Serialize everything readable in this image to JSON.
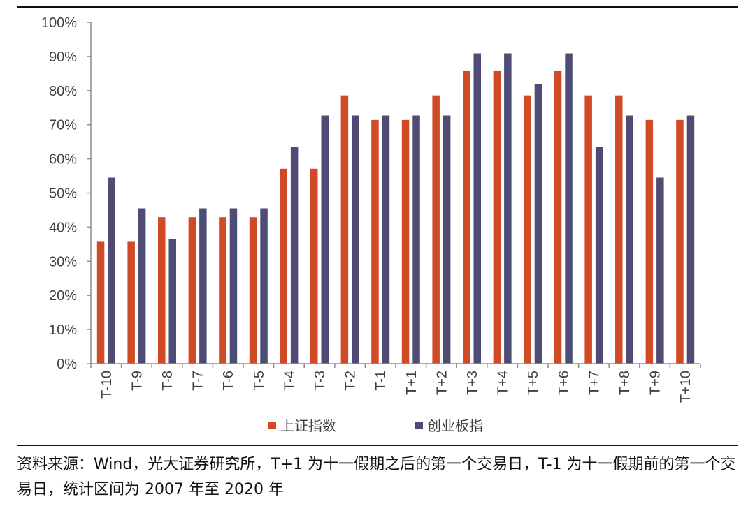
{
  "chart_data": {
    "type": "bar",
    "categories": [
      "T-10",
      "T-9",
      "T-8",
      "T-7",
      "T-6",
      "T-5",
      "T-4",
      "T-3",
      "T-2",
      "T-1",
      "T+1",
      "T+2",
      "T+3",
      "T+4",
      "T+5",
      "T+6",
      "T+7",
      "T+8",
      "T+9",
      "T+10"
    ],
    "series": [
      {
        "name": "上证指数",
        "color": "#D04A26",
        "values": [
          35.7,
          35.7,
          42.9,
          42.9,
          42.9,
          42.9,
          57.1,
          57.1,
          78.6,
          71.4,
          71.4,
          78.6,
          85.7,
          85.7,
          78.6,
          85.7,
          78.6,
          78.6,
          71.4,
          71.4
        ]
      },
      {
        "name": "创业板指",
        "color": "#4E4C74",
        "values": [
          54.5,
          45.5,
          36.4,
          45.5,
          45.5,
          45.5,
          63.6,
          72.7,
          72.7,
          72.7,
          72.7,
          72.7,
          90.9,
          90.9,
          81.8,
          90.9,
          63.6,
          72.7,
          54.5,
          72.7
        ]
      }
    ],
    "ylim": [
      0,
      100
    ],
    "yticks": [
      "0%",
      "10%",
      "20%",
      "30%",
      "40%",
      "50%",
      "60%",
      "70%",
      "80%",
      "90%",
      "100%"
    ],
    "grid": false,
    "legend_position": "bottom-center",
    "title": "",
    "xlabel": "",
    "ylabel": ""
  },
  "source_note": "资料来源：Wind，光大证券研究所，T+1 为十一假期之后的第一个交易日，T-1 为十一假期前的第一个交易日，统计区间为 2007 年至 2020 年"
}
